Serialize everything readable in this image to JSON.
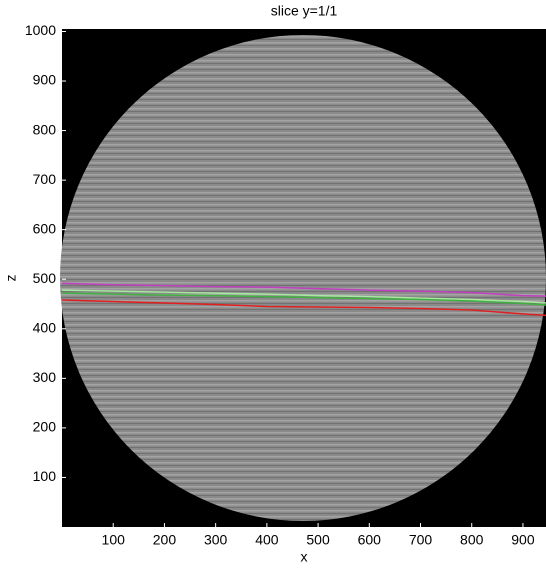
{
  "chart_data": {
    "type": "image-lines",
    "title": "slice y=1/1",
    "x_label": "x",
    "y_label": "z",
    "x": [
      0,
      100,
      200,
      300,
      400,
      500,
      600,
      700,
      800,
      900,
      945
    ],
    "series": [
      {
        "color": "#c040c0",
        "values": [
          492,
          489,
          487,
          485,
          484,
          481,
          478,
          476,
          473,
          467,
          466
        ]
      },
      {
        "color": "#a8e8a0",
        "values": [
          478,
          476,
          474,
          472,
          470,
          467,
          465,
          462,
          459,
          455,
          452
        ]
      },
      {
        "color": "#40b040",
        "values": [
          472,
          470,
          468,
          467,
          465,
          463,
          461,
          459,
          456,
          451,
          448
        ]
      },
      {
        "color": "#e02020",
        "values": [
          458,
          455,
          452,
          449,
          445,
          444,
          443,
          441,
          438,
          430,
          427
        ]
      }
    ],
    "xlim": [
      0,
      945
    ],
    "ylim": [
      0,
      1005
    ],
    "xticks": [
      100,
      200,
      300,
      400,
      500,
      600,
      700,
      800,
      900
    ],
    "yticks": [
      100,
      200,
      300,
      400,
      500,
      600,
      700,
      800,
      900,
      1000
    ]
  }
}
